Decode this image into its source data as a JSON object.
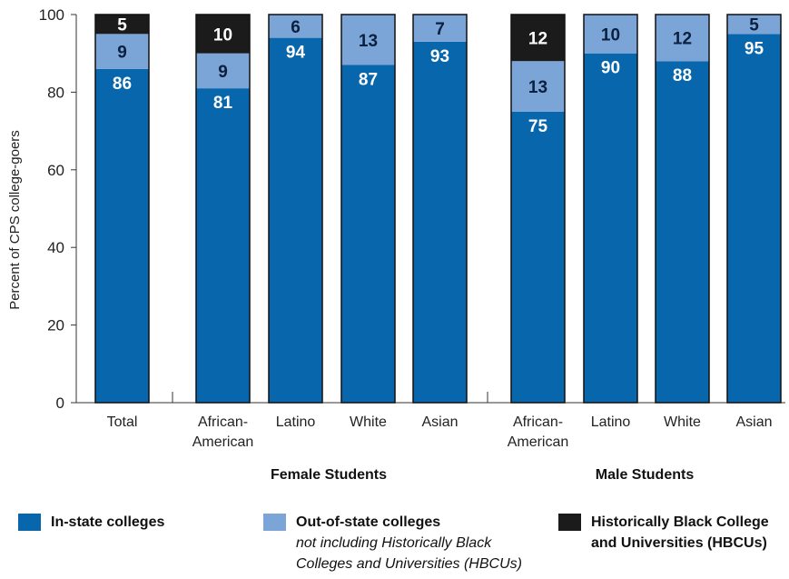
{
  "chart_data": {
    "type": "bar",
    "stacked": true,
    "ylabel": "Percent of CPS college-goers",
    "ylim": [
      0,
      100
    ],
    "yticks": [
      0,
      20,
      40,
      60,
      80,
      100
    ],
    "grid": false,
    "legend_position": "bottom",
    "categories": [
      "Total",
      "African-American",
      "Latino",
      "White",
      "Asian",
      "African-American",
      "Latino",
      "White",
      "Asian"
    ],
    "category_lines": [
      [
        "Total"
      ],
      [
        "African-",
        "American"
      ],
      [
        "Latino"
      ],
      [
        "White"
      ],
      [
        "Asian"
      ],
      [
        "African-",
        "American"
      ],
      [
        "Latino"
      ],
      [
        "White"
      ],
      [
        "Asian"
      ]
    ],
    "groups": [
      {
        "label": "",
        "indices": [
          0
        ]
      },
      {
        "label": "Female Students",
        "indices": [
          1,
          2,
          3,
          4
        ]
      },
      {
        "label": "Male Students",
        "indices": [
          5,
          6,
          7,
          8
        ]
      }
    ],
    "series": [
      {
        "name": "In-state colleges",
        "color": "#0866ad",
        "label_color": "#ffffff",
        "values": [
          86,
          81,
          94,
          87,
          93,
          75,
          90,
          88,
          95
        ]
      },
      {
        "name": "Out-of-state colleges",
        "color": "#7ca5d7",
        "label_color": "#0a2040",
        "values": [
          9,
          9,
          6,
          13,
          7,
          13,
          10,
          12,
          5
        ]
      },
      {
        "name": "Historically Black College and Universities (HBCUs)",
        "color": "#1b1b1b",
        "label_color": "#ffffff",
        "values": [
          5,
          10,
          0,
          0,
          0,
          12,
          0,
          0,
          0
        ]
      }
    ]
  },
  "legend": [
    {
      "label": "In-state colleges",
      "sub": [
        "",
        ""
      ],
      "color": "#0866ad"
    },
    {
      "label": "Out-of-state colleges",
      "sub": [
        "not including Historically Black",
        "Colleges and Universities (HBCUs)"
      ],
      "color": "#7ca5d7"
    },
    {
      "label": "Historically Black College",
      "label2": "and Universities (HBCUs)",
      "color": "#1b1b1b"
    }
  ]
}
